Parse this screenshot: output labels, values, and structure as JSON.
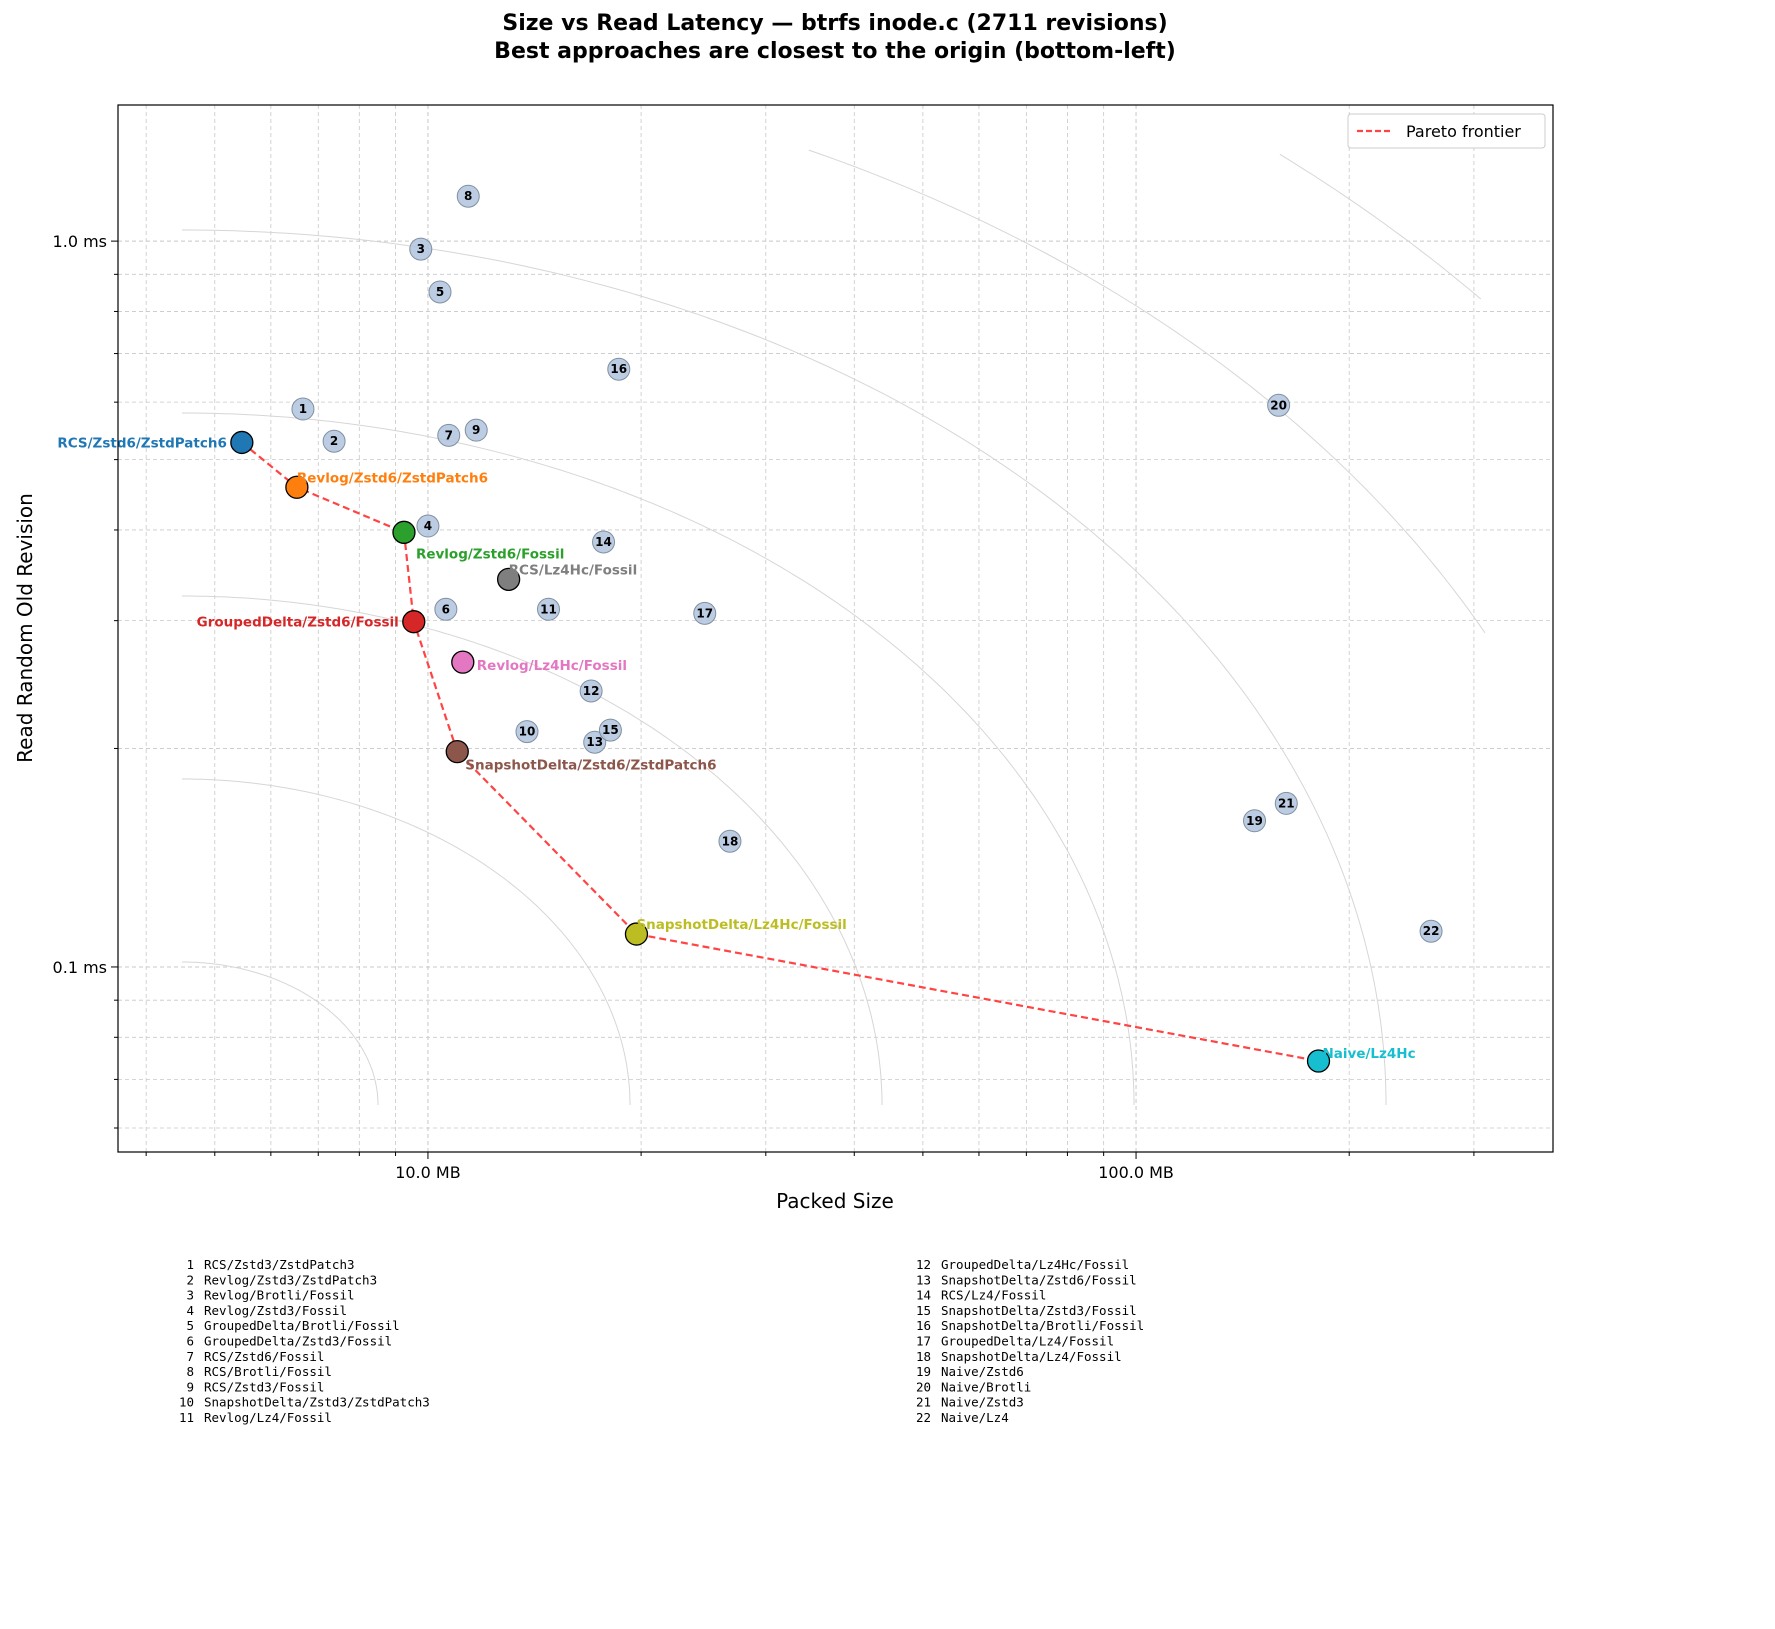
{
  "chart_data": {
    "type": "scatter",
    "title": "Size vs Read Latency — btrfs inode.c (2711 revisions)",
    "subtitle": "Best approaches are closest to the origin (bottom-left)",
    "xlabel": "Packed Size",
    "ylabel": "Read Random Old Revision",
    "x_scale": "log",
    "y_scale": "log",
    "xlim": [
      3.65,
      388
    ],
    "ylim": [
      0.0556,
      1.54
    ],
    "x_unit": "MB",
    "y_unit": "ms",
    "x_ticks": [
      {
        "value": 10,
        "label": "10.0 MB"
      },
      {
        "value": 100,
        "label": "100.0 MB"
      }
    ],
    "y_ticks": [
      {
        "value": 1,
        "label": "1.0 ms"
      },
      {
        "value": 0.1,
        "label": "0.1 ms"
      }
    ],
    "grid": true,
    "legend": {
      "placement": "top-right",
      "entries": [
        "Pareto frontier"
      ]
    },
    "pareto_color": "#ff4444",
    "pareto_points": [
      {
        "name": "RCS/Zstd6/ZstdPatch6",
        "x": 5.46,
        "y": 0.528,
        "color": "#1f77b4"
      },
      {
        "name": "Revlog/Zstd6/ZstdPatch6",
        "x": 6.53,
        "y": 0.458,
        "color": "#ff7f0e"
      },
      {
        "name": "Revlog/Zstd6/Fossil",
        "x": 9.25,
        "y": 0.397,
        "color": "#2ca02c"
      },
      {
        "name": "GroupedDelta/Zstd6/Fossil",
        "x": 9.55,
        "y": 0.299,
        "color": "#d62728"
      },
      {
        "name": "SnapshotDelta/Zstd6/ZstdPatch6",
        "x": 11.0,
        "y": 0.198,
        "color": "#8c564b"
      },
      {
        "name": "SnapshotDelta/Lz4Hc/Fossil",
        "x": 19.7,
        "y": 0.111,
        "color": "#bcbd22"
      },
      {
        "name": "Naive/Lz4Hc",
        "x": 181,
        "y": 0.0742,
        "color": "#17becf"
      }
    ],
    "highlighted_points": [
      {
        "name": "RCS/Lz4Hc/Fossil",
        "x": 13.0,
        "y": 0.342,
        "color": "#7f7f7f"
      },
      {
        "name": "Revlog/Lz4Hc/Fossil",
        "x": 11.2,
        "y": 0.263,
        "color": "#e377c2"
      }
    ],
    "numbered_point_color": "#b0c4de",
    "numbered_points": [
      {
        "n": "1",
        "name": "RCS/Zstd3/ZstdPatch3",
        "x": 6.66,
        "y": 0.587
      },
      {
        "n": "2",
        "name": "Revlog/Zstd3/ZstdPatch3",
        "x": 7.37,
        "y": 0.53
      },
      {
        "n": "3",
        "name": "Revlog/Brotli/Fossil",
        "x": 9.77,
        "y": 0.975
      },
      {
        "n": "4",
        "name": "Revlog/Zstd3/Fossil",
        "x": 10.0,
        "y": 0.405
      },
      {
        "n": "5",
        "name": "GroupedDelta/Brotli/Fossil",
        "x": 10.4,
        "y": 0.851
      },
      {
        "n": "6",
        "name": "GroupedDelta/Zstd3/Fossil",
        "x": 10.6,
        "y": 0.311
      },
      {
        "n": "7",
        "name": "RCS/Zstd6/Fossil",
        "x": 10.7,
        "y": 0.54
      },
      {
        "n": "8",
        "name": "RCS/Brotli/Fossil",
        "x": 11.4,
        "y": 1.153
      },
      {
        "n": "9",
        "name": "RCS/Zstd3/Fossil",
        "x": 11.7,
        "y": 0.549
      },
      {
        "n": "10",
        "name": "SnapshotDelta/Zstd3/ZstdPatch3",
        "x": 13.8,
        "y": 0.211
      },
      {
        "n": "11",
        "name": "Revlog/Lz4/Fossil",
        "x": 14.8,
        "y": 0.311
      },
      {
        "n": "12",
        "name": "GroupedDelta/Lz4Hc/Fossil",
        "x": 17.0,
        "y": 0.24
      },
      {
        "n": "13",
        "name": "SnapshotDelta/Zstd6/Fossil",
        "x": 17.2,
        "y": 0.204
      },
      {
        "n": "14",
        "name": "RCS/Lz4/Fossil",
        "x": 17.7,
        "y": 0.385
      },
      {
        "n": "15",
        "name": "SnapshotDelta/Zstd3/Fossil",
        "x": 18.1,
        "y": 0.212
      },
      {
        "n": "16",
        "name": "SnapshotDelta/Brotli/Fossil",
        "x": 18.6,
        "y": 0.666
      },
      {
        "n": "17",
        "name": "GroupedDelta/Lz4/Fossil",
        "x": 24.6,
        "y": 0.307
      },
      {
        "n": "18",
        "name": "SnapshotDelta/Lz4/Fossil",
        "x": 26.7,
        "y": 0.149
      },
      {
        "n": "19",
        "name": "Naive/Zstd6",
        "x": 147,
        "y": 0.159
      },
      {
        "n": "20",
        "name": "Naive/Brotli",
        "x": 159,
        "y": 0.594
      },
      {
        "n": "21",
        "name": "Naive/Zstd3",
        "x": 163,
        "y": 0.168
      },
      {
        "n": "22",
        "name": "Naive/Lz4",
        "x": 261,
        "y": 0.112
      }
    ]
  }
}
